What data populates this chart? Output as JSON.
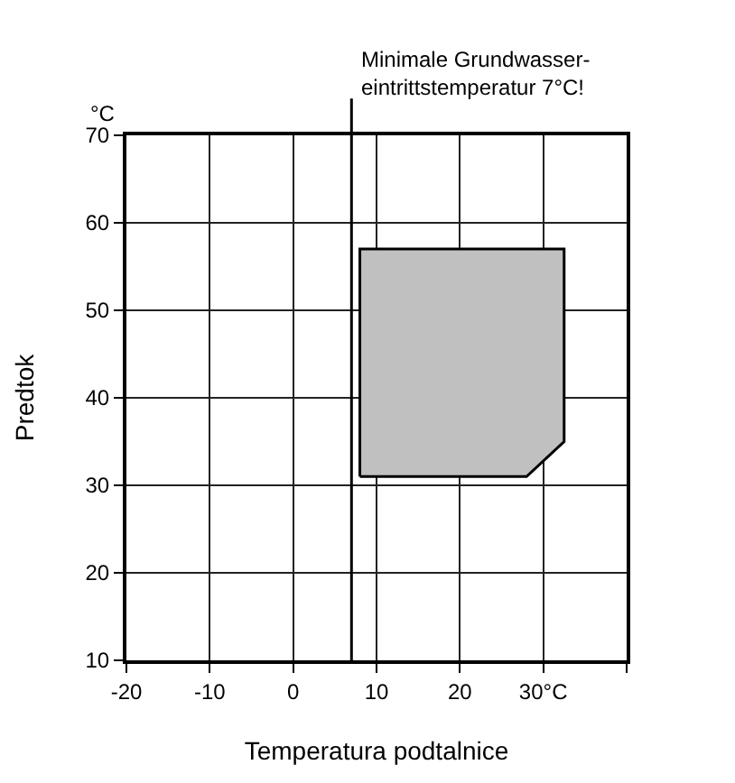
{
  "chart_data": {
    "type": "area",
    "xlabel": "Temperatura podtalnice",
    "ylabel": "Predtok",
    "annotations": [
      "°C"
    ],
    "series": [
      {
        "color": "#c0c0c0",
        "x": [
          8,
          8,
          32.5,
          32.5,
          28,
          8
        ],
        "values": [
          31,
          57,
          57,
          35,
          31,
          31
        ]
      }
    ],
    "xlim": [
      -20,
      40
    ],
    "xticks": [
      -20,
      -10,
      0,
      10,
      20,
      {
        "value": 30,
        "label": "30°C"
      },
      {
        "value": 40,
        "label": null
      }
    ],
    "ylim": [
      10,
      70
    ],
    "yticks": [
      10,
      20,
      30,
      40,
      50,
      60,
      70
    ],
    "ref_lines": [
      {
        "axis": "x",
        "value": 7,
        "label": "Minimale Grundwasser-\neintrittstemperatur 7°C!",
        "color": "#000000"
      }
    ],
    "grid": true
  }
}
